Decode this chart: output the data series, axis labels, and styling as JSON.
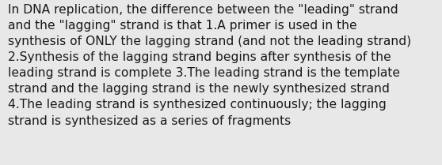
{
  "background_color": "#e8e8e8",
  "text_color": "#1a1a1a",
  "font_size": 11.2,
  "lines": [
    "In DNA replication, the difference between the \"leading\" strand",
    "and the \"lagging\" strand is that 1.A primer is used in the",
    "synthesis of ONLY the lagging strand (and not the leading strand)",
    "2.Synthesis of the lagging strand begins after synthesis of the",
    "leading strand is complete 3.The leading strand is the template",
    "strand and the lagging strand is the newly synthesized strand",
    "4.The leading strand is synthesized continuously; the lagging",
    "strand is synthesized as a series of fragments"
  ],
  "fig_width": 5.58,
  "fig_height": 2.09,
  "dpi": 100
}
